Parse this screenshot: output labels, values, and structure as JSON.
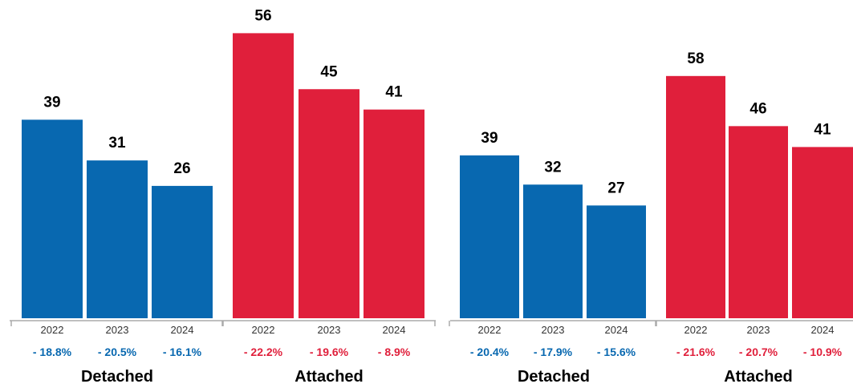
{
  "colors": {
    "detached": "#0868b0",
    "attached": "#e01f3b",
    "axis": "#aaaaaa"
  },
  "chart_data": [
    {
      "type": "bar",
      "y_scale_max": 60,
      "groups": [
        {
          "name": "Detached",
          "color_key": "detached",
          "categories": [
            "2022",
            "2023",
            "2024"
          ],
          "values": [
            39,
            31,
            26
          ],
          "changes": [
            "- 18.8%",
            "- 20.5%",
            "- 16.1%"
          ]
        },
        {
          "name": "Attached",
          "color_key": "attached",
          "categories": [
            "2022",
            "2023",
            "2024"
          ],
          "values": [
            56,
            45,
            41
          ],
          "changes": [
            "- 22.2%",
            "- 19.6%",
            "- 8.9%"
          ]
        }
      ]
    },
    {
      "type": "bar",
      "y_scale_max": 60,
      "groups": [
        {
          "name": "Detached",
          "color_key": "detached",
          "categories": [
            "2022",
            "2023",
            "2024"
          ],
          "values": [
            39,
            32,
            27
          ],
          "changes": [
            "- 20.4%",
            "- 17.9%",
            "- 15.6%"
          ]
        },
        {
          "name": "Attached",
          "color_key": "attached",
          "categories": [
            "2022",
            "2023",
            "2024"
          ],
          "values": [
            58,
            46,
            41
          ],
          "changes": [
            "- 21.6%",
            "- 20.7%",
            "- 10.9%"
          ]
        }
      ]
    }
  ]
}
